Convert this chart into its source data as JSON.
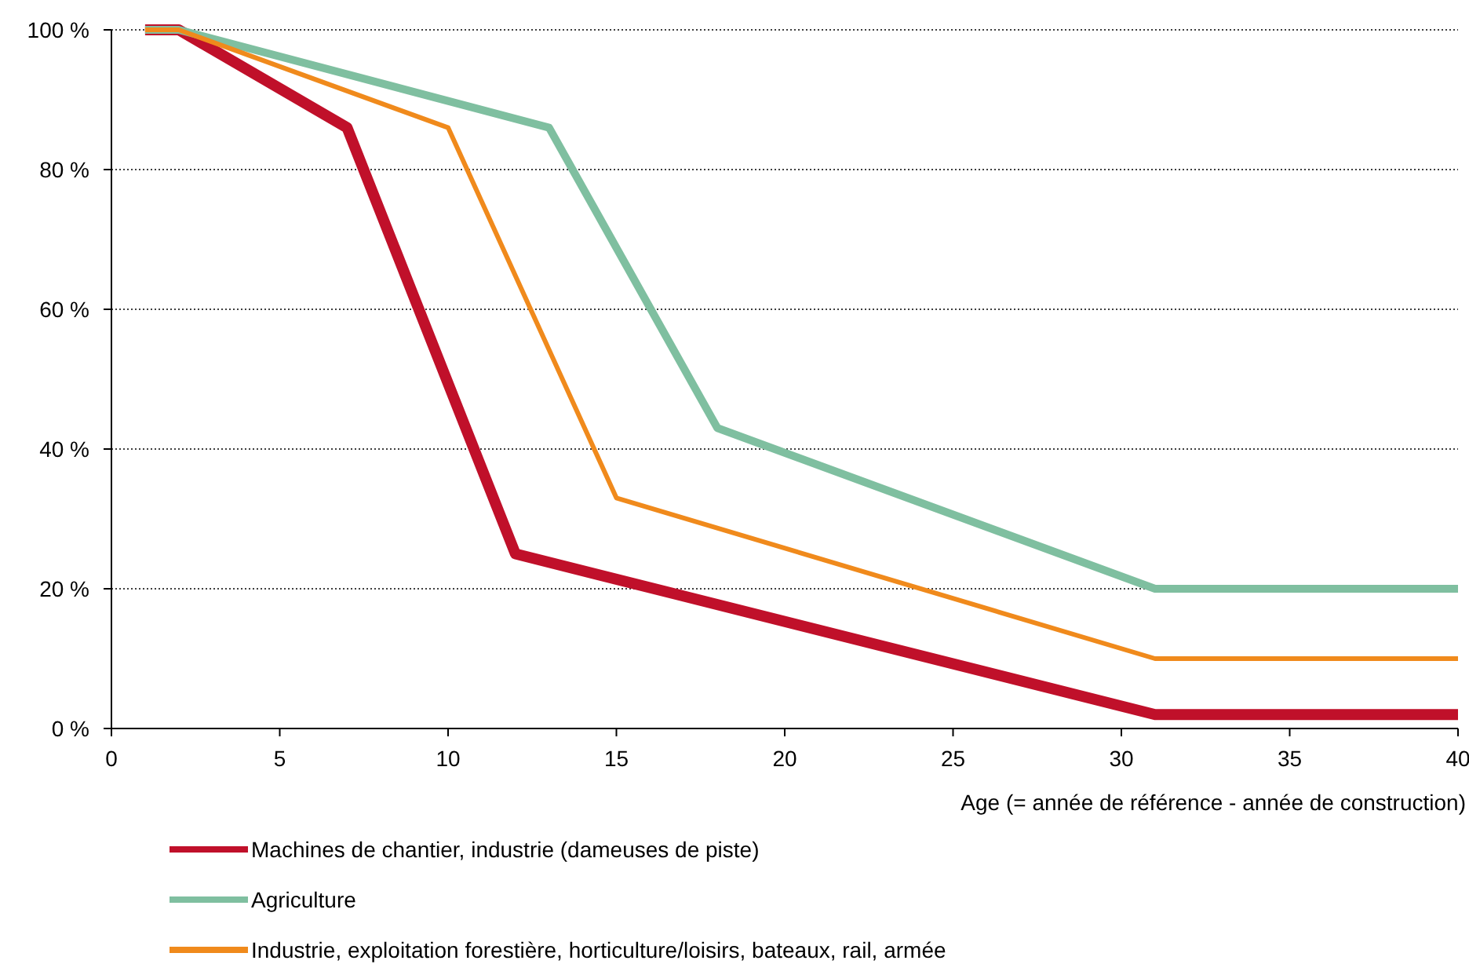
{
  "chart_data": {
    "type": "line",
    "xlabel": "Age (= année de référence - année de construction)",
    "xlim": [
      0,
      40
    ],
    "xticks": [
      0,
      5,
      10,
      15,
      20,
      25,
      30,
      35,
      40
    ],
    "ylim": [
      0,
      100
    ],
    "yticks": [
      {
        "value": 0,
        "label": "0 %"
      },
      {
        "value": 20,
        "label": "20 %"
      },
      {
        "value": 40,
        "label": "40 %"
      },
      {
        "value": 60,
        "label": "60 %"
      },
      {
        "value": 80,
        "label": "80 %"
      },
      {
        "value": 100,
        "label": "100 %"
      }
    ],
    "grid": "y",
    "legend": "bottom",
    "line_style": "solid",
    "marker": "none",
    "series": [
      {
        "name": "Machines de chantier, industrie (dameuses de piste)",
        "color": "#c0102a",
        "x": [
          1,
          2,
          7,
          12,
          31,
          40
        ],
        "values": [
          100,
          100,
          86,
          25,
          2,
          2
        ]
      },
      {
        "name": "Agriculture",
        "color": "#7fbfa0",
        "x": [
          1,
          2,
          13,
          18,
          31,
          40
        ],
        "values": [
          100,
          100,
          86,
          43,
          20,
          20
        ]
      },
      {
        "name": "Industrie, exploitation forestière, horticulture/loisirs, bateaux, rail, armée",
        "color": "#f08a1c",
        "x": [
          1,
          2,
          10,
          15,
          31,
          40
        ],
        "values": [
          100,
          100,
          86,
          33,
          10,
          10
        ]
      }
    ]
  }
}
